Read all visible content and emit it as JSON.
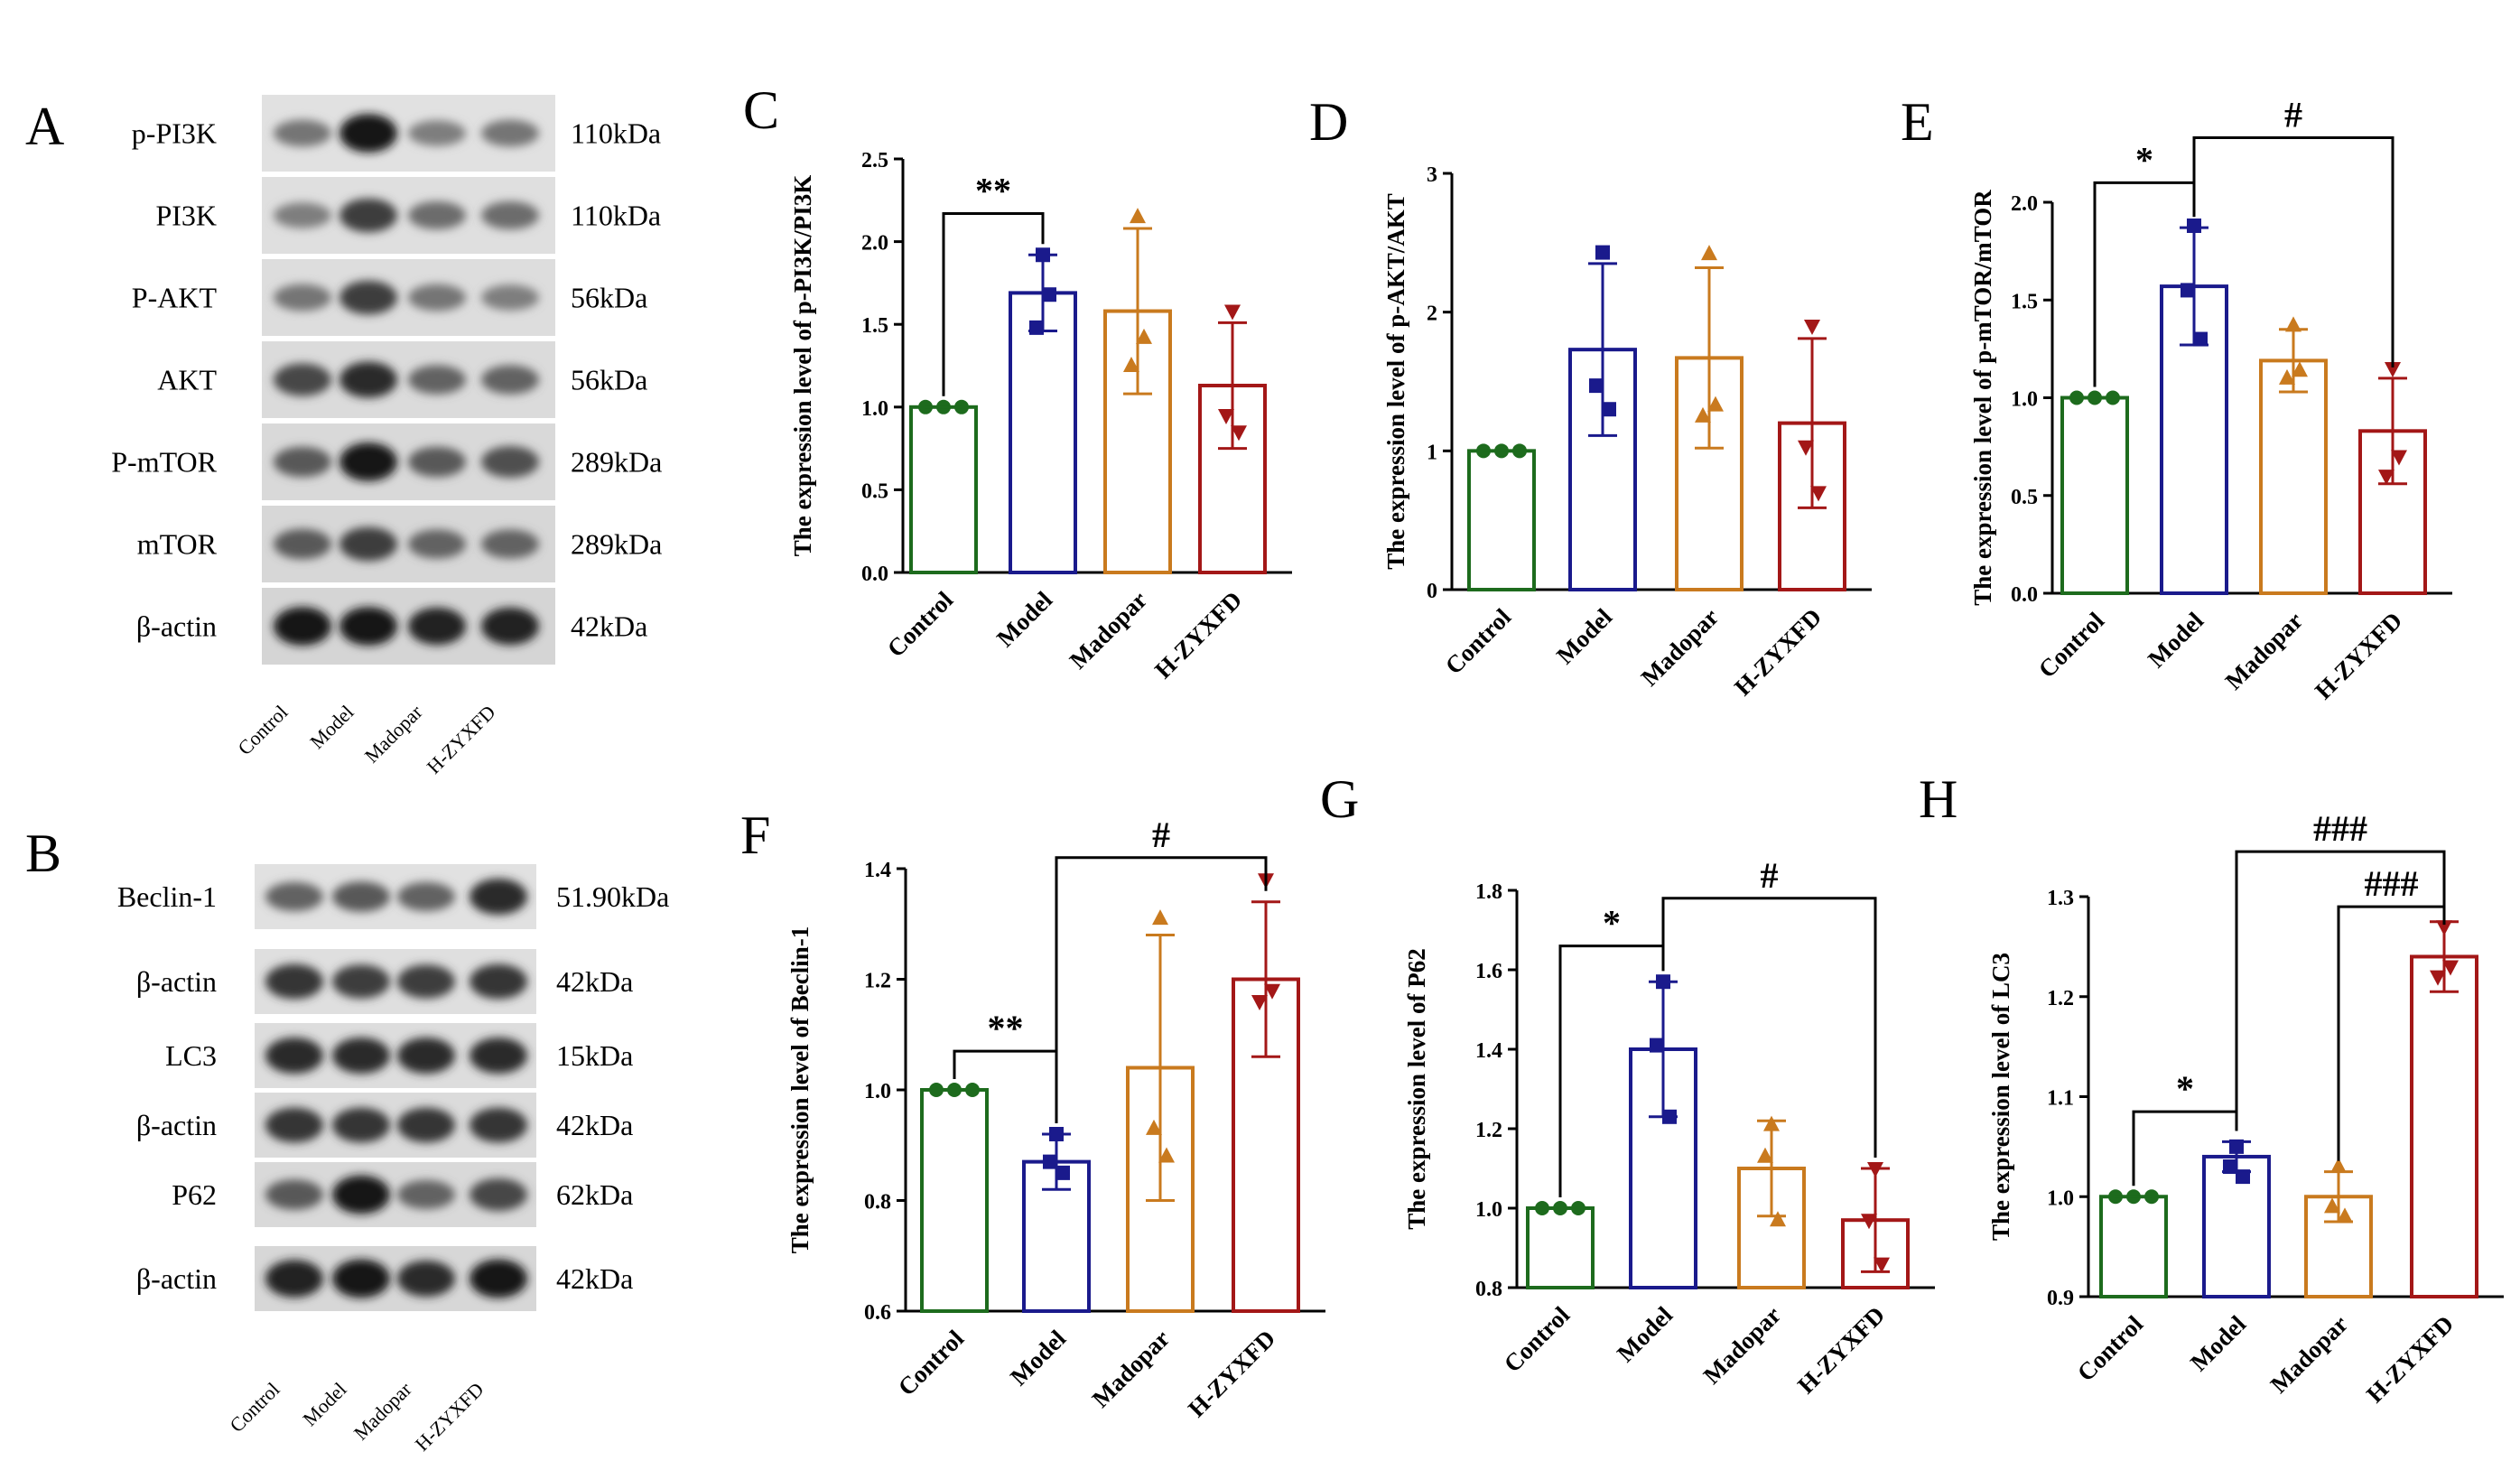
{
  "blots": [
    {
      "letter": "A",
      "rows": [
        {
          "label": "p-PI3K",
          "kda": "110kDa",
          "intensity": [
            0.45,
            0.95,
            0.4,
            0.45
          ]
        },
        {
          "label": "PI3K",
          "kda": "110kDa",
          "intensity": [
            0.4,
            0.75,
            0.5,
            0.5
          ]
        },
        {
          "label": "P-AKT",
          "kda": "56kDa",
          "intensity": [
            0.45,
            0.75,
            0.45,
            0.4
          ]
        },
        {
          "label": "AKT",
          "kda": "56kDa",
          "intensity": [
            0.7,
            0.85,
            0.55,
            0.55
          ]
        },
        {
          "label": "P-mTOR",
          "kda": "289kDa",
          "intensity": [
            0.6,
            0.95,
            0.6,
            0.65
          ]
        },
        {
          "label": "mTOR",
          "kda": "289kDa",
          "intensity": [
            0.6,
            0.75,
            0.55,
            0.55
          ]
        },
        {
          "label": "β-actin",
          "kda": "42kDa",
          "intensity": [
            0.95,
            0.95,
            0.9,
            0.9
          ]
        }
      ],
      "groups": [
        "Control",
        "Model",
        "Madopar",
        "H-ZYXFD"
      ]
    },
    {
      "letter": "B",
      "rows": [
        {
          "label": "Beclin-1",
          "kda": "51.90kDa",
          "intensity": [
            0.55,
            0.6,
            0.55,
            0.85
          ]
        },
        {
          "label": "β-actin",
          "kda": "42kDa",
          "intensity": [
            0.8,
            0.75,
            0.75,
            0.8
          ]
        },
        {
          "label": "LC3",
          "kda": "15kDa",
          "intensity": [
            0.85,
            0.85,
            0.85,
            0.85
          ]
        },
        {
          "label": "β-actin",
          "kda": "42kDa",
          "intensity": [
            0.8,
            0.8,
            0.8,
            0.8
          ]
        },
        {
          "label": "P62",
          "kda": "62kDa",
          "intensity": [
            0.6,
            0.95,
            0.55,
            0.7
          ]
        },
        {
          "label": "β-actin",
          "kda": "42kDa",
          "intensity": [
            0.9,
            0.95,
            0.85,
            0.95
          ]
        }
      ],
      "groups": [
        "Control",
        "Model",
        "Madopar",
        "H-ZYXFD"
      ]
    }
  ],
  "colors": {
    "control": "#1d6b1d",
    "model": "#1a1a8c",
    "madopar": "#c97a1e",
    "hzyxfd": "#a31717"
  },
  "chart_data": [
    {
      "letter": "C",
      "type": "bar",
      "ylabel": "The expression level of p-PI3K/PI3K",
      "categories": [
        "Control",
        "Model",
        "Madopar",
        "H-ZYXFD"
      ],
      "ylim": [
        0,
        2.5
      ],
      "ticks": [
        "0.0",
        "0.5",
        "1.0",
        "1.5",
        "2.0",
        "2.5"
      ],
      "values": [
        1.0,
        1.69,
        1.58,
        1.13
      ],
      "errors": [
        0.0,
        0.23,
        0.5,
        0.38
      ],
      "points": [
        [
          1.0,
          1.0,
          1.0
        ],
        [
          1.92,
          1.48,
          1.68
        ],
        [
          2.15,
          1.25,
          1.42
        ],
        [
          1.58,
          0.95,
          0.85
        ]
      ],
      "brackets": [
        {
          "from": 0,
          "to": 1,
          "label": "**",
          "y": 2.17
        }
      ]
    },
    {
      "letter": "D",
      "type": "bar",
      "ylabel": "The expression level of p-AKT/AKT",
      "categories": [
        "Control",
        "Model",
        "Madopar",
        "H-ZYXFD"
      ],
      "ylim": [
        0,
        3
      ],
      "ticks": [
        "0",
        "1",
        "2",
        "3"
      ],
      "values": [
        1.0,
        1.73,
        1.67,
        1.2
      ],
      "errors": [
        0.0,
        0.62,
        0.65,
        0.61
      ],
      "points": [
        [
          1.0,
          1.0,
          1.0
        ],
        [
          2.43,
          1.47,
          1.3
        ],
        [
          2.42,
          1.25,
          1.33
        ],
        [
          1.9,
          1.03,
          0.7
        ]
      ],
      "brackets": []
    },
    {
      "letter": "E",
      "type": "bar",
      "ylabel": "The expression level of p-mTOR/mTOR",
      "categories": [
        "Control",
        "Model",
        "Madopar",
        "H-ZYXFD"
      ],
      "ylim": [
        0,
        2.0
      ],
      "ticks": [
        "0.0",
        "0.5",
        "1.0",
        "1.5",
        "2.0"
      ],
      "values": [
        1.0,
        1.57,
        1.19,
        0.83
      ],
      "errors": [
        0.0,
        0.3,
        0.16,
        0.27
      ],
      "points": [
        [
          1.0,
          1.0,
          1.0
        ],
        [
          1.88,
          1.55,
          1.3
        ],
        [
          1.37,
          1.1,
          1.14
        ],
        [
          1.15,
          0.6,
          0.7
        ]
      ],
      "brackets": [
        {
          "from": 0,
          "to": 1,
          "label": "*",
          "y": 2.1,
          "sym": "*"
        },
        {
          "from": 1,
          "to": 3,
          "label": "#",
          "y": 2.33
        }
      ]
    },
    {
      "letter": "F",
      "type": "bar",
      "ylabel": "The expression level of Beclin-1",
      "categories": [
        "Control",
        "Model",
        "Madopar",
        "H-ZYXFD"
      ],
      "ylim": [
        0.6,
        1.4
      ],
      "ticks": [
        "0.6",
        "0.8",
        "1.0",
        "1.2",
        "1.4"
      ],
      "values": [
        1.0,
        0.87,
        1.04,
        1.2
      ],
      "errors": [
        0.0,
        0.05,
        0.24,
        0.14
      ],
      "points": [
        [
          1.0,
          1.0,
          1.0
        ],
        [
          0.92,
          0.87,
          0.85
        ],
        [
          1.31,
          0.93,
          0.88
        ],
        [
          1.38,
          1.16,
          1.18
        ]
      ],
      "brackets": [
        {
          "from": 0,
          "to": 1,
          "label": "**",
          "y": 1.07
        },
        {
          "from": 1,
          "to": 3,
          "label": "#",
          "y": 1.42
        }
      ]
    },
    {
      "letter": "G",
      "type": "bar",
      "ylabel": "The expression level of P62",
      "categories": [
        "Control",
        "Model",
        "Madopar",
        "H-ZYXFD"
      ],
      "ylim": [
        0.8,
        1.8
      ],
      "ticks": [
        "0.8",
        "1.0",
        "1.2",
        "1.4",
        "1.6",
        "1.8"
      ],
      "values": [
        1.0,
        1.4,
        1.1,
        0.97
      ],
      "errors": [
        0.0,
        0.17,
        0.12,
        0.13
      ],
      "points": [
        [
          1.0,
          1.0,
          1.0
        ],
        [
          1.57,
          1.41,
          1.23
        ],
        [
          1.21,
          1.13,
          0.97
        ],
        [
          1.1,
          0.97,
          0.86
        ]
      ],
      "brackets": [
        {
          "from": 0,
          "to": 1,
          "label": "*",
          "y": 1.66
        },
        {
          "from": 1,
          "to": 3,
          "label": "#",
          "y": 1.78
        }
      ]
    },
    {
      "letter": "H",
      "type": "bar",
      "ylabel": "The expression level of LC3",
      "categories": [
        "Control",
        "Model",
        "Madopar",
        "H-ZYXFD"
      ],
      "ylim": [
        0.9,
        1.3
      ],
      "ticks": [
        "0.9",
        "1.0",
        "1.1",
        "1.2",
        "1.3"
      ],
      "values": [
        1.0,
        1.04,
        1.0,
        1.24
      ],
      "errors": [
        0.0,
        0.015,
        0.025,
        0.035
      ],
      "points": [
        [
          1.0,
          1.0,
          1.0
        ],
        [
          1.05,
          1.03,
          1.02
        ],
        [
          1.03,
          0.99,
          0.98
        ],
        [
          1.27,
          1.22,
          1.23
        ]
      ],
      "brackets": [
        {
          "from": 0,
          "to": 1,
          "label": "*",
          "y": 1.085
        },
        {
          "from": 2,
          "to": 3,
          "label": "###",
          "y": 1.29
        },
        {
          "from": 1,
          "to": 3,
          "label": "###",
          "y": 1.345
        }
      ]
    }
  ]
}
